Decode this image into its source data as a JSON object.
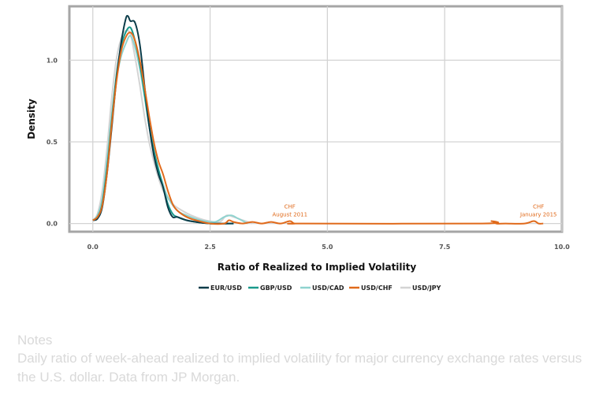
{
  "chart_data": {
    "type": "line",
    "xlabel": "Ratio of Realized to Implied Volatility",
    "ylabel": "Density",
    "xlim": [
      -0.5,
      10.0
    ],
    "ylim": [
      -0.05,
      1.33
    ],
    "x_ticks": [
      "0.0",
      "2.5",
      "5.0",
      "7.5",
      "10.0"
    ],
    "y_ticks": [
      "0.0",
      "0.5",
      "1.0"
    ],
    "grid": true,
    "legend_position": "bottom",
    "colors": {
      "EUR/USD": "#0b3c49",
      "GBP/USD": "#1a9a8c",
      "USD/CAD": "#8fd3cf",
      "USD/CHF": "#e06a1b",
      "USD/JPY": "#d4d4d4"
    },
    "series": [
      {
        "name": "EUR/USD",
        "x": [
          0.0,
          0.1,
          0.2,
          0.3,
          0.4,
          0.5,
          0.6,
          0.7,
          0.75,
          0.8,
          0.9,
          1.0,
          1.1,
          1.2,
          1.3,
          1.4,
          1.5,
          1.6,
          1.7,
          1.8,
          2.0,
          2.2,
          2.5,
          3.0
        ],
        "y": [
          0.02,
          0.03,
          0.1,
          0.3,
          0.58,
          0.87,
          1.1,
          1.25,
          1.27,
          1.24,
          1.23,
          1.1,
          0.85,
          0.6,
          0.42,
          0.3,
          0.22,
          0.1,
          0.04,
          0.04,
          0.02,
          0.01,
          0.0,
          0.0
        ]
      },
      {
        "name": "GBP/USD",
        "x": [
          0.0,
          0.1,
          0.2,
          0.3,
          0.4,
          0.5,
          0.6,
          0.7,
          0.8,
          0.9,
          1.0,
          1.1,
          1.2,
          1.3,
          1.4,
          1.5,
          1.6,
          1.7,
          1.8,
          2.0,
          2.2,
          2.5,
          3.0
        ],
        "y": [
          0.02,
          0.04,
          0.12,
          0.33,
          0.62,
          0.9,
          1.08,
          1.17,
          1.2,
          1.12,
          0.98,
          0.8,
          0.6,
          0.45,
          0.33,
          0.22,
          0.12,
          0.06,
          0.04,
          0.02,
          0.01,
          0.0,
          0.0
        ]
      },
      {
        "name": "USD/CAD",
        "x": [
          0.0,
          0.1,
          0.2,
          0.3,
          0.4,
          0.5,
          0.6,
          0.7,
          0.8,
          0.9,
          1.0,
          1.1,
          1.2,
          1.3,
          1.4,
          1.5,
          1.6,
          1.8,
          2.0,
          2.3,
          2.6,
          2.8,
          2.95,
          3.1,
          3.3
        ],
        "y": [
          0.02,
          0.05,
          0.15,
          0.38,
          0.66,
          0.88,
          1.02,
          1.1,
          1.15,
          1.08,
          0.95,
          0.78,
          0.6,
          0.45,
          0.33,
          0.24,
          0.16,
          0.08,
          0.05,
          0.02,
          0.01,
          0.04,
          0.05,
          0.03,
          0.0
        ]
      },
      {
        "name": "USD/CHF",
        "x": [
          0.0,
          0.1,
          0.2,
          0.3,
          0.4,
          0.5,
          0.6,
          0.7,
          0.8,
          0.9,
          1.0,
          1.1,
          1.2,
          1.3,
          1.4,
          1.5,
          1.6,
          1.7,
          1.8,
          2.0,
          2.2,
          2.5,
          2.8,
          2.9,
          3.0,
          3.2,
          3.4,
          3.6,
          3.8,
          4.0,
          4.2,
          4.3,
          4.5,
          8.3,
          8.5,
          8.6,
          8.8,
          9.2,
          9.4,
          9.5,
          9.6
        ],
        "y": [
          0.02,
          0.04,
          0.11,
          0.3,
          0.6,
          0.86,
          1.05,
          1.14,
          1.17,
          1.12,
          1.0,
          0.84,
          0.66,
          0.5,
          0.38,
          0.3,
          0.2,
          0.12,
          0.08,
          0.04,
          0.02,
          0.0,
          0.0,
          0.02,
          0.01,
          0.0,
          0.01,
          0.0,
          0.01,
          0.0,
          0.015,
          0.0,
          0.0,
          0.0,
          0.015,
          0.0,
          0.0,
          0.0,
          0.015,
          0.0,
          0.0
        ]
      },
      {
        "name": "USD/JPY",
        "x": [
          0.0,
          0.1,
          0.2,
          0.3,
          0.4,
          0.5,
          0.6,
          0.7,
          0.8,
          0.9,
          1.0,
          1.1,
          1.2,
          1.3,
          1.4,
          1.5,
          1.7,
          1.9,
          2.1,
          2.4,
          2.7,
          2.85,
          3.0,
          3.2,
          3.4
        ],
        "y": [
          0.02,
          0.06,
          0.2,
          0.45,
          0.76,
          1.0,
          1.13,
          1.18,
          1.16,
          1.02,
          0.85,
          0.66,
          0.5,
          0.38,
          0.28,
          0.2,
          0.12,
          0.08,
          0.05,
          0.02,
          0.01,
          0.05,
          0.04,
          0.02,
          0.0
        ]
      }
    ],
    "annotations": [
      {
        "line1": "CHF",
        "line2": "August 2011",
        "x": 4.2,
        "y": 0.05
      },
      {
        "line1": "CHF",
        "line2": "January 2015",
        "x": 9.5,
        "y": 0.05
      }
    ]
  },
  "notes": {
    "title": "Notes",
    "text": "Daily ratio of week-ahead realized to implied volatility for major currency exchange rates versus the U.S. dollar. Data from JP Morgan."
  }
}
